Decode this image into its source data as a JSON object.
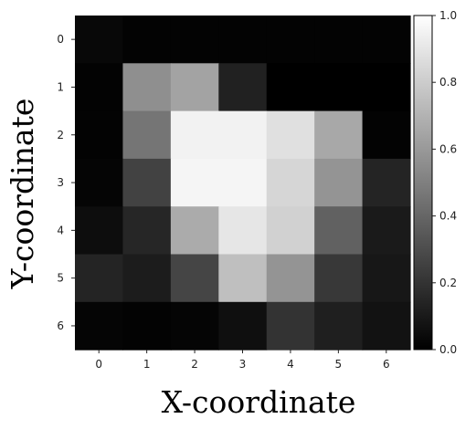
{
  "chart_data": {
    "type": "heatmap",
    "colormap": "gray",
    "xlabel": "X-coordinate",
    "ylabel": "Y-coordinate",
    "x_ticks": [
      "0",
      "1",
      "2",
      "3",
      "4",
      "5",
      "6"
    ],
    "y_ticks": [
      "0",
      "1",
      "2",
      "3",
      "4",
      "5",
      "6"
    ],
    "colorbar": {
      "min": 0.0,
      "max": 1.0,
      "ticks": [
        "0.0",
        "0.2",
        "0.4",
        "0.6",
        "0.8",
        "1.0"
      ]
    },
    "grid": false,
    "values": [
      [
        0.03,
        0.01,
        0.01,
        0.01,
        0.01,
        0.01,
        0.01
      ],
      [
        0.01,
        0.56,
        0.64,
        0.13,
        0.0,
        0.0,
        0.0
      ],
      [
        0.01,
        0.46,
        0.95,
        0.95,
        0.88,
        0.66,
        0.01
      ],
      [
        0.02,
        0.26,
        0.96,
        0.96,
        0.84,
        0.58,
        0.14
      ],
      [
        0.05,
        0.15,
        0.67,
        0.9,
        0.82,
        0.38,
        0.1
      ],
      [
        0.14,
        0.11,
        0.27,
        0.75,
        0.58,
        0.22,
        0.09
      ],
      [
        0.02,
        0.01,
        0.02,
        0.06,
        0.2,
        0.12,
        0.07
      ]
    ]
  }
}
